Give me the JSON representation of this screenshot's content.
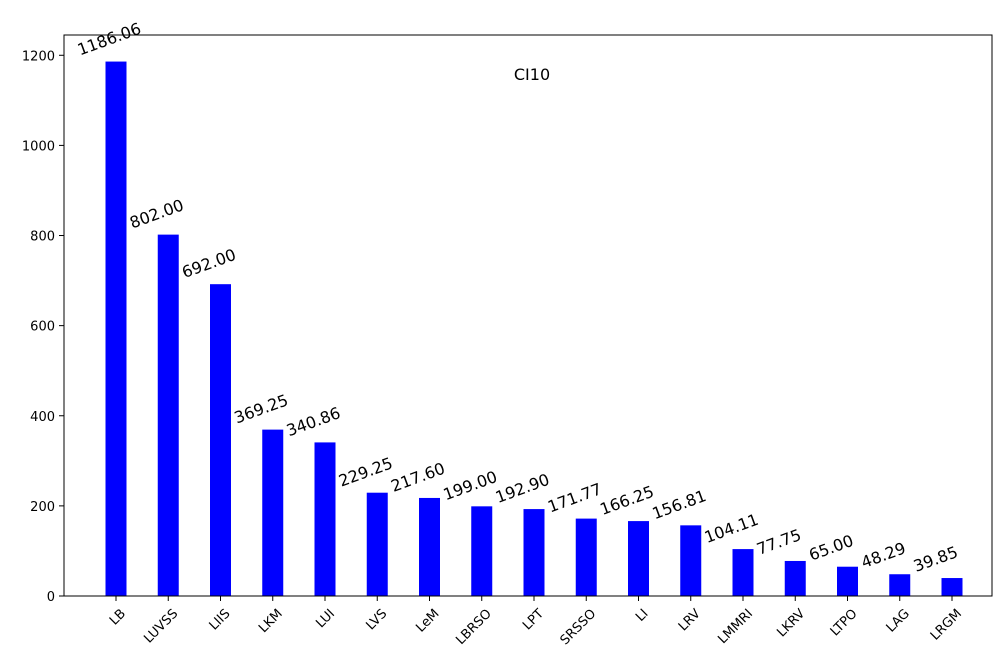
{
  "chart_data": {
    "type": "bar",
    "title": "CI10",
    "xlabel": "",
    "ylabel": "",
    "categories": [
      "LB",
      "LUVSS",
      "LIIS",
      "LKM",
      "LUI",
      "LVS",
      "LeM",
      "LBRSO",
      "LPT",
      "SRSSO",
      "LI",
      "LRV",
      "LMMRI",
      "LKRV",
      "LTPO",
      "LAG",
      "LRGM"
    ],
    "values": [
      1186.06,
      802.0,
      692.0,
      369.25,
      340.86,
      229.25,
      217.6,
      199.0,
      192.9,
      171.77,
      166.25,
      156.81,
      104.11,
      77.75,
      65.0,
      48.29,
      39.85
    ],
    "value_labels": [
      "1186.06",
      "802.00",
      "692.00",
      "369.25",
      "340.86",
      "229.25",
      "217.60",
      "199.00",
      "192.90",
      "171.77",
      "166.25",
      "156.81",
      "104.11",
      "77.75",
      "65.00",
      "48.29",
      "39.85"
    ],
    "yticks": [
      0,
      200,
      400,
      600,
      800,
      1000,
      1200
    ],
    "ylim": [
      0,
      1245
    ],
    "bar_color": "#0000ff",
    "grid": false,
    "legend": "none"
  }
}
